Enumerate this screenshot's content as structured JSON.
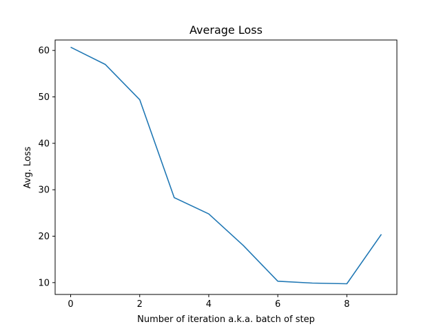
{
  "chart_data": {
    "type": "line",
    "title": "Average Loss",
    "xlabel": "Number of iteration a.k.a. batch of step",
    "ylabel": "Avg. Loss",
    "xlim": [
      -0.45,
      9.45
    ],
    "ylim": [
      7.45,
      62.25
    ],
    "x_ticks": [
      0,
      2,
      4,
      6,
      8
    ],
    "y_ticks": [
      10,
      20,
      30,
      40,
      50,
      60
    ],
    "grid": false,
    "series": [
      {
        "color": "#1f77b4",
        "x": [
          0,
          1,
          2,
          3,
          4,
          5,
          6,
          7,
          8,
          9
        ],
        "values": [
          60.7,
          57.0,
          49.4,
          28.3,
          24.8,
          18.0,
          10.3,
          9.9,
          9.75,
          20.4
        ]
      }
    ]
  }
}
